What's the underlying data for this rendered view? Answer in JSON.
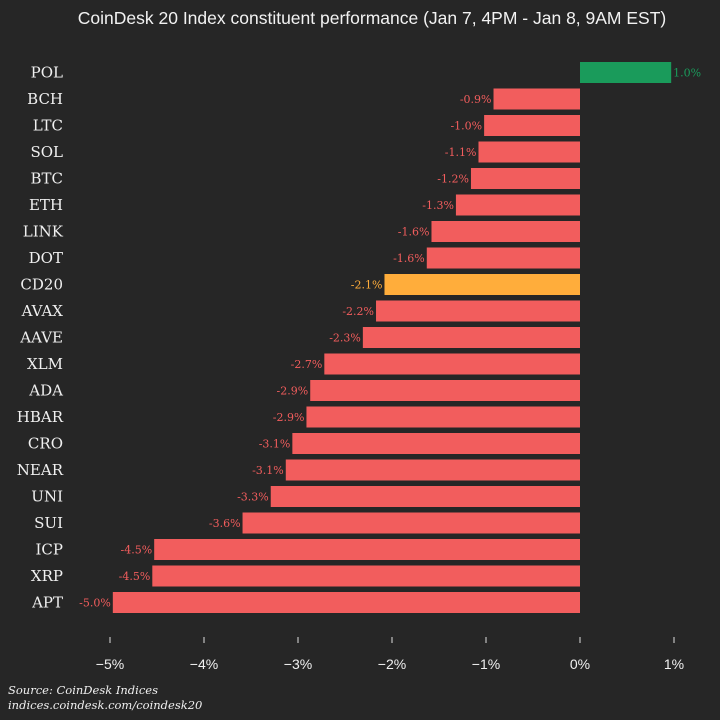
{
  "chart_data": {
    "type": "bar",
    "orientation": "horizontal",
    "title": "CoinDesk 20 Index constituent performance (Jan 7, 4PM - Jan 8, 9AM EST)",
    "categories": [
      "POL",
      "BCH",
      "LTC",
      "SOL",
      "BTC",
      "ETH",
      "LINK",
      "DOT",
      "CD20",
      "AVAX",
      "AAVE",
      "XLM",
      "ADA",
      "HBAR",
      "CRO",
      "NEAR",
      "UNI",
      "SUI",
      "ICP",
      "XRP",
      "APT"
    ],
    "values": [
      0.97,
      -0.92,
      -1.02,
      -1.08,
      -1.16,
      -1.32,
      -1.58,
      -1.63,
      -2.08,
      -2.17,
      -2.31,
      -2.72,
      -2.87,
      -2.91,
      -3.06,
      -3.13,
      -3.29,
      -3.59,
      -4.53,
      -4.55,
      -4.97
    ],
    "labels": [
      "1.0%",
      "-0.9%",
      "-1.0%",
      "-1.1%",
      "-1.2%",
      "-1.3%",
      "-1.6%",
      "-1.6%",
      "-2.1%",
      "-2.2%",
      "-2.3%",
      "-2.7%",
      "-2.9%",
      "-2.9%",
      "-3.1%",
      "-3.1%",
      "-3.3%",
      "-3.6%",
      "-4.5%",
      "-4.5%",
      "-5.0%"
    ],
    "highlight": "CD20",
    "xlim": [
      -5.5,
      1.2
    ],
    "xticks": [
      -5,
      -4,
      -3,
      -2,
      -1,
      0,
      1
    ],
    "xtick_labels": [
      "−5%",
      "−4%",
      "−3%",
      "−2%",
      "−1%",
      "0%",
      "1%"
    ],
    "colors": {
      "positive": "#1a9b5b",
      "negative": "#f25d5d",
      "highlight": "#ffad3b",
      "positive_label": "#1a9b5b",
      "negative_label": "#f25d5d",
      "highlight_label": "#ffad3b",
      "background": "#262626"
    },
    "grid": false
  },
  "source": {
    "line1": "Source: CoinDesk Indices",
    "line2": "indices.coindesk.com/coindesk20"
  }
}
